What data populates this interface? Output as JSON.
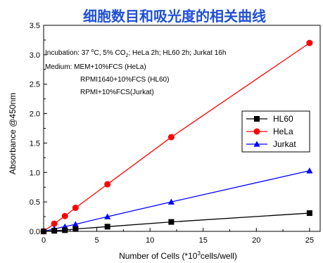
{
  "chart_data": {
    "type": "line",
    "title": "细胞数目和吸光度的相关曲线",
    "xlabel_main": "Number of Cells (*10",
    "xlabel_sup": "3",
    "xlabel_tail": "cells/well)",
    "ylabel": "Absorbance  @450nm",
    "xlim": [
      0,
      26
    ],
    "ylim": [
      0,
      3.5
    ],
    "x_ticks": [
      0,
      5,
      10,
      15,
      20,
      25
    ],
    "y_ticks": [
      0.0,
      0.5,
      1.0,
      1.5,
      2.0,
      2.5,
      3.0,
      3.5
    ],
    "x_tick_labels": [
      "0",
      "5",
      "10",
      "15",
      "20",
      "25"
    ],
    "y_tick_labels": [
      "0.0",
      "0.5",
      "1.0",
      "1.5",
      "2.0",
      "2.5",
      "3.0",
      "3.5"
    ],
    "legend_position": "center-right",
    "annotations": {
      "line1_pre": "Incubation: 37 ",
      "line1_deg_sup": "o",
      "line1_mid": "C, 5% CO",
      "line1_sub": "2",
      "line1_post": "; HeLa 2h; HL60 2h; Jurkat 16h",
      "line2": "Medium: MEM+10%FCS (HeLa)",
      "line3": "RPMI1640+10%FCS (HL60)",
      "line4": "RPMI+10%FCS(Jurkat)"
    },
    "series": [
      {
        "name": "HL60",
        "color": "#000000",
        "marker": "square",
        "x": [
          0,
          1,
          2,
          3,
          6,
          12,
          25
        ],
        "y": [
          0.0,
          0.01,
          0.02,
          0.04,
          0.08,
          0.16,
          0.31
        ]
      },
      {
        "name": "HeLa",
        "color": "#ff0000",
        "marker": "circle",
        "x": [
          0,
          1,
          2,
          3,
          6,
          12,
          25
        ],
        "y": [
          0.0,
          0.13,
          0.26,
          0.4,
          0.8,
          1.6,
          3.2
        ]
      },
      {
        "name": "Jurkat",
        "color": "#0000ff",
        "marker": "triangle",
        "x": [
          0,
          1,
          2,
          3,
          6,
          12,
          25
        ],
        "y": [
          0.0,
          0.04,
          0.08,
          0.12,
          0.25,
          0.5,
          1.03
        ]
      }
    ]
  }
}
